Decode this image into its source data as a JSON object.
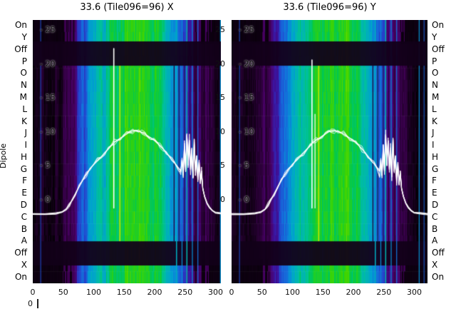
{
  "ylabel": "Dipole",
  "corner_label": "0",
  "dipole_labels": [
    "On",
    "Y",
    "Off",
    "P",
    "O",
    "N",
    "M",
    "L",
    "K",
    "J",
    "I",
    "H",
    "G",
    "F",
    "E",
    "D",
    "C",
    "B",
    "A",
    "Off",
    "X",
    "On"
  ],
  "ytick_inner_labels": [
    "- 25",
    "- 20",
    "- 15",
    "- 10",
    "- 5",
    "- 0"
  ],
  "ytick_mid_labels": [
    "25",
    "20",
    "15",
    "10",
    "5",
    "0"
  ],
  "xtick_labels": [
    "0",
    "50",
    "100",
    "150",
    "200",
    "250",
    "300"
  ],
  "chart_data": {
    "type": "heatmap",
    "description": "Two per-dipole spectral power heatmaps (X and Y polarisation) with overlaid white bandpass traces",
    "rows": [
      "On",
      "Y",
      "Off",
      "P",
      "O",
      "N",
      "M",
      "L",
      "K",
      "J",
      "I",
      "H",
      "G",
      "F",
      "E",
      "D",
      "C",
      "B",
      "A",
      "Off",
      "X",
      "On"
    ],
    "x_ticks": [
      0,
      50,
      100,
      150,
      200,
      250,
      300
    ],
    "x_range": [
      0,
      322
    ],
    "y_ticks": [
      25,
      20,
      15,
      10,
      5,
      0
    ],
    "value_range": [
      -12.3,
      26.5
    ],
    "dark_bands": [
      [
        1.79,
        3.82
      ],
      [
        18.49,
        20.51
      ]
    ],
    "column_profile": [
      [
        0,
        0.05
      ],
      [
        10,
        0.055
      ],
      [
        20,
        0.05
      ],
      [
        32,
        0.055
      ],
      [
        42,
        0.07
      ],
      [
        50,
        0.1
      ],
      [
        58,
        0.15
      ],
      [
        66,
        0.22
      ],
      [
        74,
        0.3
      ],
      [
        82,
        0.38
      ],
      [
        90,
        0.45
      ],
      [
        98,
        0.51
      ],
      [
        106,
        0.55
      ],
      [
        114,
        0.58
      ],
      [
        122,
        0.62
      ],
      [
        130,
        0.65
      ],
      [
        138,
        0.67
      ],
      [
        146,
        0.69
      ],
      [
        154,
        0.7
      ],
      [
        162,
        0.71
      ],
      [
        170,
        0.72
      ],
      [
        178,
        0.71
      ],
      [
        186,
        0.7
      ],
      [
        194,
        0.69
      ],
      [
        202,
        0.67
      ],
      [
        210,
        0.63
      ],
      [
        218,
        0.57
      ],
      [
        226,
        0.51
      ],
      [
        234,
        0.45
      ],
      [
        242,
        0.38
      ],
      [
        250,
        0.3
      ],
      [
        258,
        0.24
      ],
      [
        266,
        0.2
      ],
      [
        274,
        0.17
      ],
      [
        284,
        0.13
      ],
      [
        294,
        0.1
      ],
      [
        302,
        0.08
      ],
      [
        312,
        0.06
      ],
      [
        322,
        0.05
      ]
    ],
    "streaks": [
      {
        "x": 13,
        "v": 0.38,
        "w": 1.2,
        "full": true
      },
      {
        "x": 143,
        "v": 0.84,
        "w": 2.2,
        "full": false
      },
      {
        "x": 147,
        "v": 0.72,
        "w": 1.2,
        "full": false
      },
      {
        "x": 232,
        "v": 0.1,
        "w": 1.4,
        "full": false
      },
      {
        "x": 236,
        "v": 0.55,
        "w": 1.8,
        "full": true
      },
      {
        "x": 240,
        "v": 0.08,
        "w": 1.2,
        "full": false
      },
      {
        "x": 245,
        "v": 0.5,
        "w": 1.4,
        "full": true
      },
      {
        "x": 249,
        "v": 0.1,
        "w": 1.2,
        "full": false
      },
      {
        "x": 253,
        "v": 0.58,
        "w": 1.8,
        "full": true
      },
      {
        "x": 258,
        "v": 0.12,
        "w": 1.4,
        "full": false
      },
      {
        "x": 262,
        "v": 0.5,
        "w": 1.4,
        "full": true
      },
      {
        "x": 267,
        "v": 0.1,
        "w": 1.2,
        "full": false
      },
      {
        "x": 271,
        "v": 0.45,
        "w": 1.4,
        "full": true
      },
      {
        "x": 277,
        "v": 0.12,
        "w": 1.2,
        "full": false
      },
      {
        "x": 308,
        "v": 0.5,
        "w": 1.4,
        "full": true
      },
      {
        "x": 316,
        "v": 0.42,
        "w": 1.2,
        "full": true
      }
    ],
    "colormap": [
      [
        0,
        "#000000"
      ],
      [
        0.05,
        "#100014"
      ],
      [
        0.13,
        "#2e003c"
      ],
      [
        0.2,
        "#4a0066"
      ],
      [
        0.28,
        "#3c14a0"
      ],
      [
        0.36,
        "#2442cc"
      ],
      [
        0.44,
        "#1470dc"
      ],
      [
        0.52,
        "#00a0d2"
      ],
      [
        0.6,
        "#00c0a0"
      ],
      [
        0.67,
        "#00c850"
      ],
      [
        0.74,
        "#3cd400"
      ],
      [
        0.82,
        "#a0e000"
      ],
      [
        0.9,
        "#ecf000"
      ],
      [
        1,
        "#ffffff"
      ]
    ],
    "bandpass_curve": [
      [
        0,
        -2.1
      ],
      [
        20,
        -2.1
      ],
      [
        38,
        -2.0
      ],
      [
        48,
        -1.8
      ],
      [
        55,
        -1.4
      ],
      [
        60,
        -0.8
      ],
      [
        65,
        0.1
      ],
      [
        70,
        0.9
      ],
      [
        76,
        1.9
      ],
      [
        82,
        2.9
      ],
      [
        88,
        3.8
      ],
      [
        94,
        4.6
      ],
      [
        100,
        5.2
      ],
      [
        106,
        5.8
      ],
      [
        112,
        6.3
      ],
      [
        118,
        6.9
      ],
      [
        124,
        7.5
      ],
      [
        129,
        8.0
      ],
      [
        134,
        8.5
      ],
      [
        139,
        8.8
      ],
      [
        144,
        9.1
      ],
      [
        149,
        9.4
      ],
      [
        154,
        9.7
      ],
      [
        159,
        10.0
      ],
      [
        164,
        10.2
      ],
      [
        169,
        10.2
      ],
      [
        174,
        10.1
      ],
      [
        179,
        9.9
      ],
      [
        184,
        9.7
      ],
      [
        189,
        9.4
      ],
      [
        194,
        9.1
      ],
      [
        199,
        8.8
      ],
      [
        204,
        8.4
      ],
      [
        209,
        8.0
      ],
      [
        214,
        7.5
      ],
      [
        219,
        7.0
      ],
      [
        224,
        6.4
      ],
      [
        229,
        5.8
      ],
      [
        234,
        5.3
      ],
      [
        239,
        4.7
      ],
      [
        243,
        4.2
      ],
      [
        245,
        5.9
      ],
      [
        247,
        3.6
      ],
      [
        249,
        7.9
      ],
      [
        251,
        4.3
      ],
      [
        253,
        9.5
      ],
      [
        255,
        5.1
      ],
      [
        257,
        8.7
      ],
      [
        259,
        4.5
      ],
      [
        261,
        7.3
      ],
      [
        263,
        3.4
      ],
      [
        265,
        8.9
      ],
      [
        267,
        4.3
      ],
      [
        269,
        6.5
      ],
      [
        271,
        3.0
      ],
      [
        273,
        5.5
      ],
      [
        275,
        2.4
      ],
      [
        277,
        3.9
      ],
      [
        279,
        1.7
      ],
      [
        282,
        0.5
      ],
      [
        286,
        -0.5
      ],
      [
        290,
        -1.1
      ],
      [
        295,
        -1.6
      ],
      [
        300,
        -1.9
      ],
      [
        310,
        -2.0
      ],
      [
        322,
        -2.1
      ]
    ],
    "plots": [
      {
        "title": "33.6 (Tile096=96) X",
        "seed": 7,
        "spikes": [
          {
            "x": 133,
            "peak": 22.3
          }
        ]
      },
      {
        "title": "33.6 (Tile096=96) Y",
        "seed": 31,
        "spikes": [
          {
            "x": 132,
            "peak": 20.6
          },
          {
            "x": 137,
            "peak": 12.6
          }
        ]
      }
    ]
  }
}
